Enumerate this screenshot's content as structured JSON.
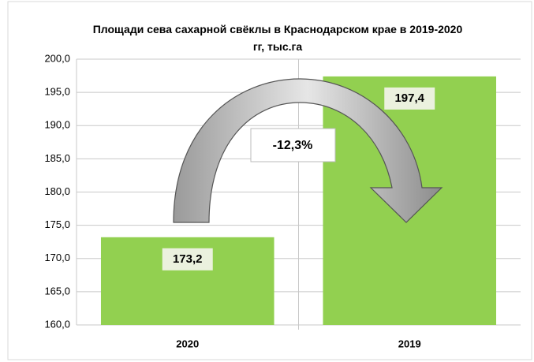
{
  "chart_data": {
    "type": "bar",
    "title": "Площади сева сахарной свёклы в Краснодарском крае в 2019-2020 гг, тыс.га",
    "categories": [
      "2020",
      "2019"
    ],
    "values": [
      173.2,
      197.4
    ],
    "value_labels": [
      "173,2",
      "197,4"
    ],
    "color": "#92d050",
    "annotation": "-12,3%",
    "ylim": [
      160,
      200
    ],
    "yticks": [
      {
        "value": 160,
        "label": "160,0"
      },
      {
        "value": 165,
        "label": "165,0"
      },
      {
        "value": 170,
        "label": "170,0"
      },
      {
        "value": 175,
        "label": "175,0"
      },
      {
        "value": 180,
        "label": "180,0"
      },
      {
        "value": 185,
        "label": "185,0"
      },
      {
        "value": 190,
        "label": "190,0"
      },
      {
        "value": 195,
        "label": "195,0"
      },
      {
        "value": 200,
        "label": "200,0"
      }
    ],
    "grid": true
  }
}
